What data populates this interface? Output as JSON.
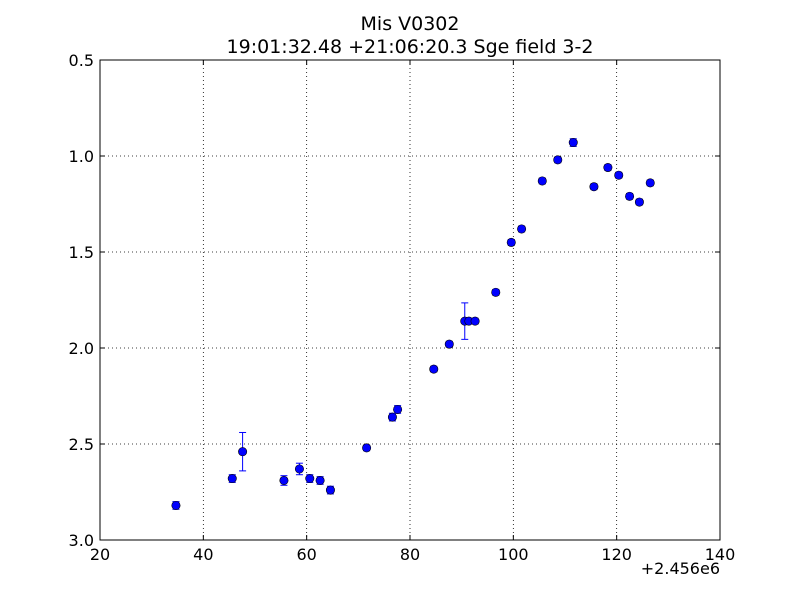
{
  "chart_data": {
    "type": "scatter",
    "title": "Mis V0302",
    "subtitle": "19:01:32.48 +21:06:20.3 Sge field 3-2",
    "xlabel": "",
    "ylabel": "",
    "x_offset_label": "+2.456e6",
    "xlim": [
      20,
      140
    ],
    "ylim": [
      3.0,
      0.5
    ],
    "y_inverted": true,
    "grid": true,
    "x_ticks": [
      20,
      40,
      60,
      80,
      100,
      120,
      140
    ],
    "x_tick_labels": [
      "20",
      "40",
      "60",
      "80",
      "100",
      "120",
      "140"
    ],
    "y_ticks": [
      0.5,
      1.0,
      1.5,
      2.0,
      2.5,
      3.0
    ],
    "y_tick_labels": [
      "0.5",
      "1.0",
      "1.5",
      "2.0",
      "2.5",
      "3.0"
    ],
    "marker_color": "#0000ff",
    "points": [
      {
        "x": 34.7,
        "y": 2.82,
        "err": 0.02
      },
      {
        "x": 45.6,
        "y": 2.68,
        "err": 0.02
      },
      {
        "x": 47.6,
        "y": 2.54,
        "err": 0.1
      },
      {
        "x": 55.6,
        "y": 2.69,
        "err": 0.025
      },
      {
        "x": 58.6,
        "y": 2.63,
        "err": 0.03
      },
      {
        "x": 60.6,
        "y": 2.68,
        "err": 0.02
      },
      {
        "x": 62.6,
        "y": 2.69,
        "err": 0.02
      },
      {
        "x": 64.6,
        "y": 2.74,
        "err": 0.02
      },
      {
        "x": 71.6,
        "y": 2.52,
        "err": 0.015
      },
      {
        "x": 76.6,
        "y": 2.36,
        "err": 0.02
      },
      {
        "x": 77.6,
        "y": 2.32,
        "err": 0.02
      },
      {
        "x": 84.6,
        "y": 2.11,
        "err": 0.015
      },
      {
        "x": 87.6,
        "y": 1.98,
        "err": 0.015
      },
      {
        "x": 90.6,
        "y": 1.86,
        "err": 0.095
      },
      {
        "x": 91.4,
        "y": 1.86,
        "err": 0.015
      },
      {
        "x": 92.6,
        "y": 1.86,
        "err": 0.015
      },
      {
        "x": 96.6,
        "y": 1.71,
        "err": 0.015
      },
      {
        "x": 99.6,
        "y": 1.45,
        "err": 0.015
      },
      {
        "x": 101.6,
        "y": 1.38,
        "err": 0.015
      },
      {
        "x": 105.6,
        "y": 1.13,
        "err": 0.015
      },
      {
        "x": 108.6,
        "y": 1.02,
        "err": 0.015
      },
      {
        "x": 111.6,
        "y": 0.93,
        "err": 0.02
      },
      {
        "x": 115.6,
        "y": 1.16,
        "err": 0.015
      },
      {
        "x": 118.3,
        "y": 1.06,
        "err": 0.015
      },
      {
        "x": 120.4,
        "y": 1.1,
        "err": 0.015
      },
      {
        "x": 122.5,
        "y": 1.21,
        "err": 0.015
      },
      {
        "x": 124.4,
        "y": 1.24,
        "err": 0.015
      },
      {
        "x": 126.5,
        "y": 1.14,
        "err": 0.015
      }
    ]
  }
}
